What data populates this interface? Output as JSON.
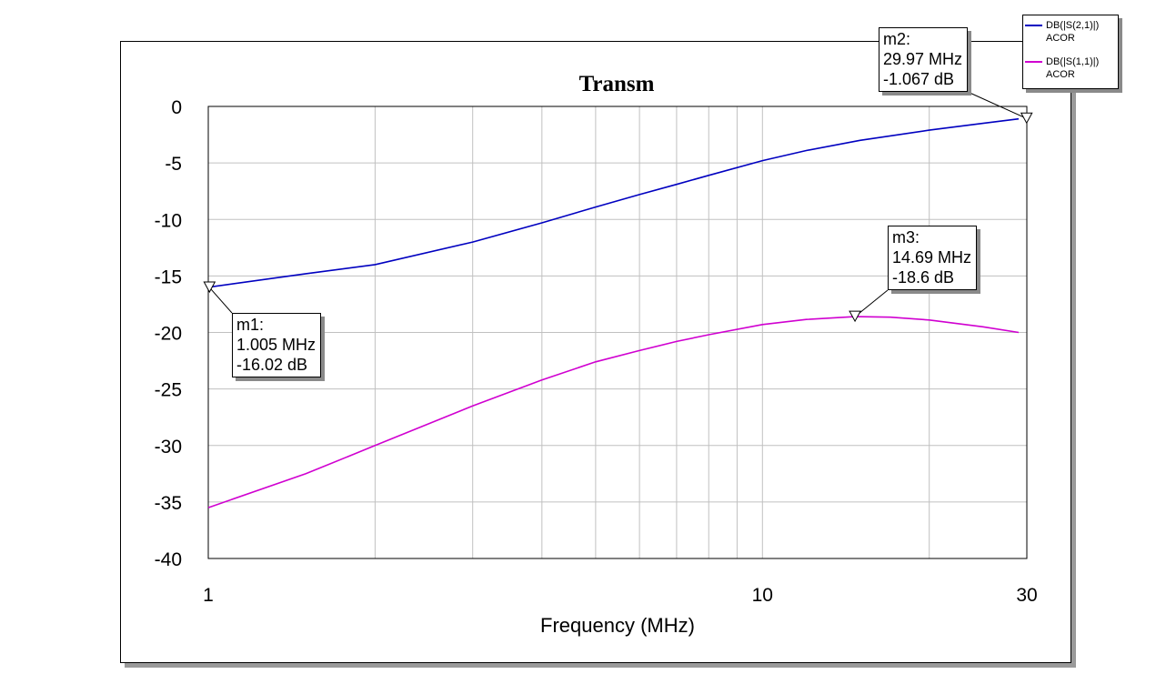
{
  "chart_data": {
    "type": "line",
    "title": "Transm",
    "xlabel": "Frequency (MHz)",
    "ylabel": "",
    "x_scale": "log",
    "xlim": [
      1,
      30
    ],
    "ylim": [
      -40,
      0
    ],
    "x_ticks": [
      1,
      10,
      30
    ],
    "x_tick_labels": [
      "1",
      "10",
      "30"
    ],
    "x_minor_grid": [
      2,
      3,
      4,
      5,
      6,
      7,
      8,
      9,
      20
    ],
    "y_ticks": [
      0,
      -5,
      -10,
      -15,
      -20,
      -25,
      -30,
      -35,
      -40
    ],
    "y_tick_labels": [
      "0",
      "-5",
      "-10",
      "-15",
      "-20",
      "-25",
      "-30",
      "-35",
      "-40"
    ],
    "grid": true,
    "legend_position": "top-right",
    "series": [
      {
        "name": "DB(|S(2,1)|)",
        "subname": "ACOR",
        "color": "#0000c0",
        "x": [
          1.0,
          1.5,
          2.0,
          3.0,
          4.0,
          5.0,
          6.0,
          7.0,
          8.0,
          10.0,
          12.0,
          15.0,
          20.0,
          25.0,
          29.0
        ],
        "y": [
          -16.0,
          -14.8,
          -14.0,
          -12.0,
          -10.3,
          -8.9,
          -7.8,
          -6.9,
          -6.1,
          -4.8,
          -3.9,
          -3.0,
          -2.1,
          -1.5,
          -1.1
        ]
      },
      {
        "name": "DB(|S(1,1)|)",
        "subname": "ACOR",
        "color": "#d000d0",
        "x": [
          1.0,
          1.5,
          2.0,
          3.0,
          4.0,
          5.0,
          6.0,
          7.0,
          8.0,
          10.0,
          12.0,
          14.7,
          17.0,
          20.0,
          25.0,
          29.0
        ],
        "y": [
          -35.5,
          -32.5,
          -30.0,
          -26.5,
          -24.2,
          -22.6,
          -21.6,
          -20.8,
          -20.2,
          -19.3,
          -18.85,
          -18.6,
          -18.65,
          -18.9,
          -19.5,
          -20.0
        ]
      }
    ],
    "markers": [
      {
        "name": "m1:",
        "freq": "1.005 MHz",
        "value": "-16.02 dB",
        "x": 1.005,
        "y": -16.02
      },
      {
        "name": "m2:",
        "freq": "29.97 MHz",
        "value": "-1.067 dB",
        "x": 29.97,
        "y": -1.067
      },
      {
        "name": "m3:",
        "freq": "14.69 MHz",
        "value": "-18.6 dB",
        "x": 14.69,
        "y": -18.6
      }
    ]
  }
}
